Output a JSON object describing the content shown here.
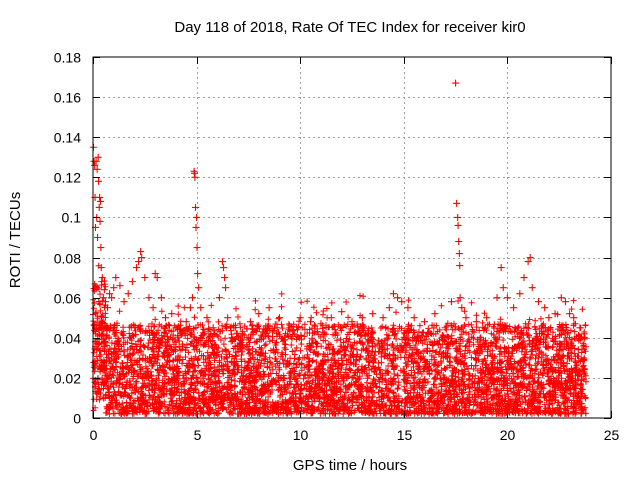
{
  "chart_data": {
    "type": "scatter",
    "title": "Day 118 of 2018, Rate Of TEC Index for receiver kir0",
    "xlabel": "GPS time / hours",
    "ylabel": "ROTI / TECUs",
    "xlim": [
      0,
      25
    ],
    "ylim": [
      0,
      0.18
    ],
    "xticks": [
      0,
      5,
      10,
      15,
      20,
      25
    ],
    "xtick_labels": [
      "0",
      "5",
      "10",
      "15",
      "20",
      "25"
    ],
    "yticks": [
      0,
      0.02,
      0.04,
      0.06,
      0.08,
      0.1,
      0.12,
      0.14,
      0.16,
      0.18
    ],
    "ytick_labels": [
      "0",
      "0.02",
      "0.04",
      "0.06",
      "0.08",
      "0.1",
      "0.12",
      "0.14",
      "0.16",
      "0.18"
    ],
    "grid": true,
    "legend": "none",
    "marker": "+",
    "color": "#ff0000",
    "series": [
      {
        "points": [
          [
            0.02,
            0.135
          ],
          [
            0.05,
            0.128
          ],
          [
            0.08,
            0.126
          ],
          [
            0.1,
            0.11
          ],
          [
            0.12,
            0.095
          ],
          [
            0.15,
            0.128
          ],
          [
            0.18,
            0.1
          ],
          [
            0.2,
            0.124
          ],
          [
            0.22,
            0.09
          ],
          [
            0.25,
            0.13
          ],
          [
            0.27,
            0.118
          ],
          [
            0.3,
            0.105
          ],
          [
            0.32,
            0.11
          ],
          [
            0.34,
            0.098
          ],
          [
            0.36,
            0.108
          ],
          [
            0.38,
            0.085
          ],
          [
            0.4,
            0.075
          ],
          [
            0.42,
            0.068
          ],
          [
            0.45,
            0.07
          ],
          [
            0.5,
            0.06
          ],
          [
            0.55,
            0.064
          ],
          [
            0.6,
            0.058
          ],
          [
            0.7,
            0.055
          ],
          [
            0.8,
            0.062
          ],
          [
            0.9,
            0.06
          ],
          [
            1.0,
            0.065
          ],
          [
            1.1,
            0.07
          ],
          [
            1.3,
            0.066
          ],
          [
            1.5,
            0.058
          ],
          [
            1.7,
            0.062
          ],
          [
            1.9,
            0.068
          ],
          [
            2.1,
            0.075
          ],
          [
            2.2,
            0.078
          ],
          [
            2.3,
            0.083
          ],
          [
            2.35,
            0.08
          ],
          [
            2.5,
            0.07
          ],
          [
            2.7,
            0.06
          ],
          [
            2.9,
            0.055
          ],
          [
            3.0,
            0.072
          ],
          [
            3.1,
            0.07
          ],
          [
            3.3,
            0.06
          ],
          [
            3.5,
            0.05
          ],
          [
            3.8,
            0.052
          ],
          [
            4.0,
            0.045
          ],
          [
            4.3,
            0.042
          ],
          [
            4.5,
            0.048
          ],
          [
            4.7,
            0.055
          ],
          [
            4.8,
            0.06
          ],
          [
            4.88,
            0.123
          ],
          [
            4.9,
            0.122
          ],
          [
            4.92,
            0.12
          ],
          [
            4.95,
            0.105
          ],
          [
            4.97,
            0.095
          ],
          [
            5.0,
            0.1
          ],
          [
            5.02,
            0.085
          ],
          [
            5.05,
            0.072
          ],
          [
            5.1,
            0.065
          ],
          [
            5.2,
            0.055
          ],
          [
            5.5,
            0.05
          ],
          [
            5.8,
            0.045
          ],
          [
            6.1,
            0.06
          ],
          [
            6.25,
            0.078
          ],
          [
            6.3,
            0.075
          ],
          [
            6.35,
            0.07
          ],
          [
            6.4,
            0.065
          ],
          [
            6.5,
            0.05
          ],
          [
            6.8,
            0.045
          ],
          [
            7.2,
            0.042
          ],
          [
            7.6,
            0.048
          ],
          [
            8.0,
            0.052
          ],
          [
            8.5,
            0.055
          ],
          [
            9.0,
            0.05
          ],
          [
            9.5,
            0.045
          ],
          [
            10.0,
            0.05
          ],
          [
            10.5,
            0.048
          ],
          [
            11.0,
            0.047
          ],
          [
            11.5,
            0.05
          ],
          [
            12.0,
            0.053
          ],
          [
            12.5,
            0.048
          ],
          [
            13.0,
            0.05
          ],
          [
            13.5,
            0.052
          ],
          [
            14.0,
            0.05
          ],
          [
            14.3,
            0.055
          ],
          [
            14.5,
            0.062
          ],
          [
            14.7,
            0.06
          ],
          [
            14.9,
            0.058
          ],
          [
            15.2,
            0.055
          ],
          [
            15.5,
            0.05
          ],
          [
            16.0,
            0.048
          ],
          [
            16.5,
            0.052
          ],
          [
            17.0,
            0.045
          ],
          [
            17.3,
            0.058
          ],
          [
            17.5,
            0.167
          ],
          [
            17.55,
            0.107
          ],
          [
            17.6,
            0.1
          ],
          [
            17.62,
            0.096
          ],
          [
            17.65,
            0.088
          ],
          [
            17.68,
            0.082
          ],
          [
            17.7,
            0.076
          ],
          [
            17.72,
            0.06
          ],
          [
            17.8,
            0.055
          ],
          [
            18.0,
            0.05
          ],
          [
            18.5,
            0.048
          ],
          [
            19.0,
            0.05
          ],
          [
            19.5,
            0.06
          ],
          [
            19.7,
            0.075
          ],
          [
            19.8,
            0.065
          ],
          [
            20.0,
            0.06
          ],
          [
            20.3,
            0.055
          ],
          [
            20.6,
            0.062
          ],
          [
            20.8,
            0.07
          ],
          [
            21.0,
            0.078
          ],
          [
            21.1,
            0.08
          ],
          [
            21.2,
            0.065
          ],
          [
            21.5,
            0.058
          ],
          [
            21.8,
            0.055
          ],
          [
            22.0,
            0.05
          ],
          [
            22.3,
            0.052
          ],
          [
            22.6,
            0.06
          ],
          [
            22.8,
            0.058
          ],
          [
            23.0,
            0.052
          ],
          [
            23.2,
            0.05
          ],
          [
            23.5,
            0.045
          ],
          [
            23.7,
            0.042
          ]
        ]
      }
    ],
    "dense_band": {
      "x_start": 0,
      "x_end": 23.8,
      "floor": 0.002,
      "typical_max": 0.045
    }
  }
}
